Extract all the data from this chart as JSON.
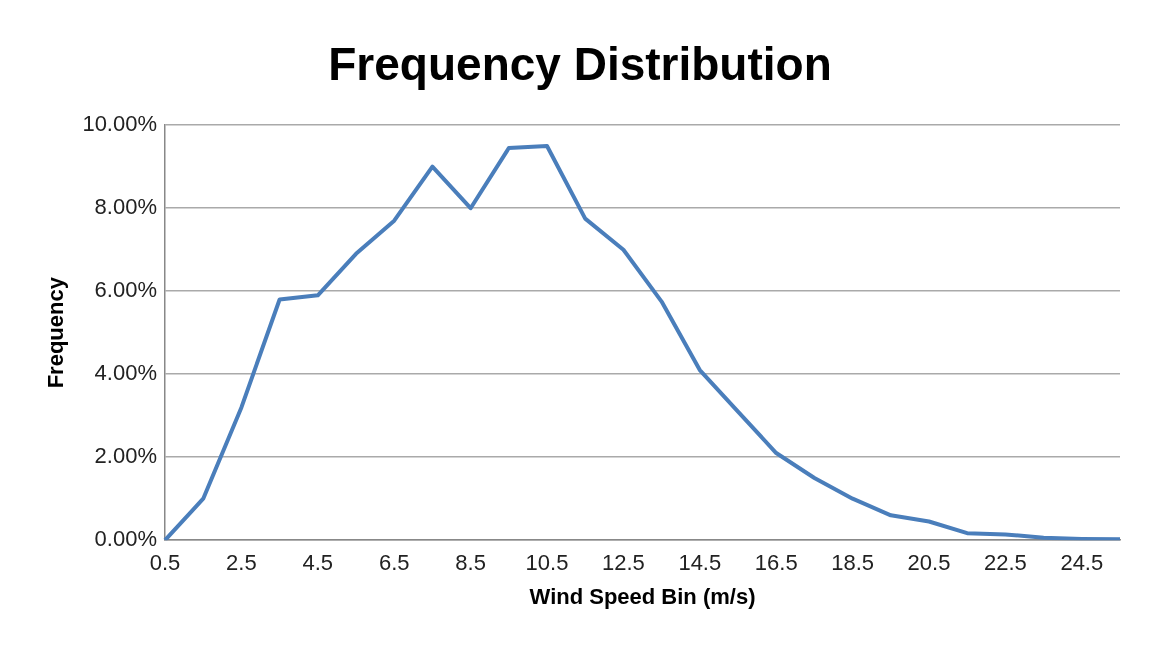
{
  "chart_data": {
    "type": "line",
    "title": "Frequency Distribution",
    "xlabel": "Wind Speed Bin (m/s)",
    "ylabel": "Frequency",
    "categories": [
      "0.5",
      null,
      "2.5",
      null,
      "4.5",
      null,
      "6.5",
      null,
      "8.5",
      null,
      "10.5",
      null,
      "12.5",
      null,
      "14.5",
      null,
      "16.5",
      null,
      "18.5",
      null,
      "20.5",
      null,
      "22.5",
      null,
      "24.5",
      null
    ],
    "series": [
      {
        "color": "#4a7ebb",
        "values": [
          0,
          1.0,
          3.2,
          5.8,
          5.9,
          6.9,
          7.7,
          9.0,
          8.0,
          9.45,
          9.5,
          7.75,
          7.0,
          5.75,
          4.1,
          3.1,
          2.1,
          1.5,
          1.0,
          0.6,
          0.45,
          0.17,
          0.14,
          0.06,
          0.03,
          0.02
        ]
      }
    ],
    "ylim": [
      0,
      10
    ],
    "yticks": [
      {
        "value": 0,
        "label": "0.00%"
      },
      {
        "value": 2,
        "label": "2.00%"
      },
      {
        "value": 4,
        "label": "4.00%"
      },
      {
        "value": 6,
        "label": "6.00%"
      },
      {
        "value": 8,
        "label": "8.00%"
      },
      {
        "value": 10,
        "label": "10.00%"
      }
    ],
    "grid": "y",
    "legend": false,
    "marker": "none",
    "line_style": "solid"
  }
}
